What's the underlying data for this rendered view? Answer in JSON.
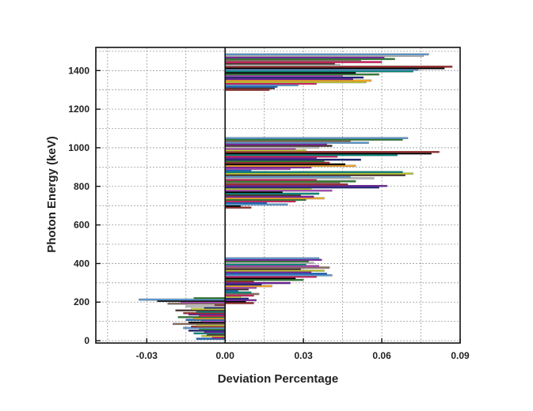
{
  "chart_data": {
    "type": "bar",
    "orientation": "horizontal",
    "title": "",
    "xlabel": "Deviation Percentage",
    "ylabel": "Photon Energy (keV)",
    "xlim": [
      -0.0495,
      0.09
    ],
    "ylim": [
      -12,
      1520
    ],
    "x_ticks": [
      -0.03,
      0.0,
      0.03,
      0.06,
      0.09
    ],
    "x_tick_labels": [
      "-0.03",
      "0.00",
      "0.03",
      "0.06",
      "0.09"
    ],
    "y_ticks": [
      0,
      200,
      400,
      600,
      800,
      1000,
      1200,
      1400
    ],
    "y_tick_labels": [
      "0",
      "200",
      "400",
      "600",
      "800",
      "1000",
      "1200",
      "1400"
    ],
    "grid": true,
    "zero_line": 0.0,
    "bar_height_kev": 9,
    "palette": [
      "#5b9bd5",
      "#9e2a2b",
      "#2e7d32",
      "#7b1fa2",
      "#c0ca33",
      "#1a237e",
      "#d81b60",
      "#00897b",
      "#8d6e63",
      "#000000",
      "#f9a825",
      "#6a1b9a",
      "#1565c0",
      "#bdbdbd",
      "#4e342e",
      "#ab47bc"
    ],
    "bars": [
      {
        "energy": 10,
        "value": -0.011,
        "color": "#1565c0"
      },
      {
        "energy": 17,
        "value": -0.005,
        "color": "#d81b60"
      },
      {
        "energy": 24,
        "value": -0.009,
        "color": "#c0ca33"
      },
      {
        "energy": 31,
        "value": -0.007,
        "color": "#4e342e"
      },
      {
        "energy": 38,
        "value": -0.012,
        "color": "#00897b"
      },
      {
        "energy": 45,
        "value": -0.008,
        "color": "#7b1fa2"
      },
      {
        "energy": 52,
        "value": -0.014,
        "color": "#1a237e"
      },
      {
        "energy": 59,
        "value": -0.01,
        "color": "#2e7d32"
      },
      {
        "energy": 66,
        "value": -0.016,
        "color": "#5b9bd5"
      },
      {
        "energy": 73,
        "value": -0.013,
        "color": "#9e2a2b"
      },
      {
        "energy": 80,
        "value": -0.011,
        "color": "#c0ca33"
      },
      {
        "energy": 87,
        "value": -0.02,
        "color": "#8d6e63"
      },
      {
        "energy": 94,
        "value": -0.014,
        "color": "#000000"
      },
      {
        "energy": 101,
        "value": -0.009,
        "color": "#ab47bc"
      },
      {
        "energy": 108,
        "value": -0.015,
        "color": "#1565c0"
      },
      {
        "energy": 115,
        "value": -0.012,
        "color": "#f9a825"
      },
      {
        "energy": 122,
        "value": -0.018,
        "color": "#2e7d32"
      },
      {
        "energy": 129,
        "value": -0.01,
        "color": "#d81b60"
      },
      {
        "energy": 136,
        "value": -0.014,
        "color": "#6a1b9a"
      },
      {
        "energy": 143,
        "value": -0.016,
        "color": "#9e2a2b"
      },
      {
        "energy": 150,
        "value": -0.011,
        "color": "#00897b"
      },
      {
        "energy": 157,
        "value": -0.019,
        "color": "#4e342e"
      },
      {
        "energy": 164,
        "value": -0.013,
        "color": "#c0ca33"
      },
      {
        "energy": 171,
        "value": -0.008,
        "color": "#1a237e"
      },
      {
        "energy": 178,
        "value": -0.015,
        "color": "#bdbdbd"
      },
      {
        "energy": 185,
        "value": -0.004,
        "color": "#9e2a2b"
      },
      {
        "energy": 192,
        "value": -0.022,
        "color": "#8d6e63"
      },
      {
        "energy": 199,
        "value": -0.017,
        "color": "#ab47bc"
      },
      {
        "energy": 206,
        "value": -0.026,
        "color": "#000000"
      },
      {
        "energy": 213,
        "value": -0.033,
        "color": "#5b9bd5"
      },
      {
        "energy": 220,
        "value": -0.012,
        "color": "#2e7d32"
      },
      {
        "energy": 195,
        "value": 0.011,
        "color": "#9e2a2b"
      },
      {
        "energy": 203,
        "value": 0.008,
        "color": "#000000"
      },
      {
        "energy": 210,
        "value": 0.012,
        "color": "#7b1fa2"
      },
      {
        "energy": 218,
        "value": 0.009,
        "color": "#1a237e"
      },
      {
        "energy": 226,
        "value": 0.006,
        "color": "#c0ca33"
      },
      {
        "energy": 234,
        "value": 0.011,
        "color": "#d81b60"
      },
      {
        "energy": 242,
        "value": 0.013,
        "color": "#8d6e63"
      },
      {
        "energy": 250,
        "value": 0.01,
        "color": "#00897b"
      },
      {
        "energy": 258,
        "value": 0.005,
        "color": "#1565c0"
      },
      {
        "energy": 266,
        "value": 0.009,
        "color": "#4e342e"
      },
      {
        "energy": 274,
        "value": 0.012,
        "color": "#ab47bc"
      },
      {
        "energy": 283,
        "value": 0.018,
        "color": "#f9a825"
      },
      {
        "energy": 291,
        "value": 0.014,
        "color": "#1a237e"
      },
      {
        "energy": 299,
        "value": 0.025,
        "color": "#6a1b9a"
      },
      {
        "energy": 307,
        "value": 0.011,
        "color": "#9e2a2b"
      },
      {
        "energy": 315,
        "value": 0.03,
        "color": "#2e7d32"
      },
      {
        "energy": 323,
        "value": 0.027,
        "color": "#000000"
      },
      {
        "energy": 331,
        "value": 0.035,
        "color": "#d81b60"
      },
      {
        "energy": 339,
        "value": 0.041,
        "color": "#5b9bd5"
      },
      {
        "energy": 347,
        "value": 0.039,
        "color": "#1565c0"
      },
      {
        "energy": 355,
        "value": 0.033,
        "color": "#7b1fa2"
      },
      {
        "energy": 363,
        "value": 0.038,
        "color": "#c0ca33"
      },
      {
        "energy": 371,
        "value": 0.029,
        "color": "#4e342e"
      },
      {
        "energy": 379,
        "value": 0.04,
        "color": "#8d6e63"
      },
      {
        "energy": 387,
        "value": 0.036,
        "color": "#ab47bc"
      },
      {
        "energy": 395,
        "value": 0.031,
        "color": "#00897b"
      },
      {
        "energy": 403,
        "value": 0.034,
        "color": "#bdbdbd"
      },
      {
        "energy": 411,
        "value": 0.032,
        "color": "#2e7d32"
      },
      {
        "energy": 419,
        "value": 0.037,
        "color": "#7b1fa2"
      },
      {
        "energy": 427,
        "value": 0.036,
        "color": "#5b9bd5"
      },
      {
        "energy": 690,
        "value": 0.01,
        "color": "#9e2a2b"
      },
      {
        "energy": 698,
        "value": 0.006,
        "color": "#000000"
      },
      {
        "energy": 706,
        "value": 0.024,
        "color": "#5b9bd5"
      },
      {
        "energy": 714,
        "value": 0.016,
        "color": "#1565c0"
      },
      {
        "energy": 722,
        "value": 0.027,
        "color": "#d81b60"
      },
      {
        "energy": 730,
        "value": 0.031,
        "color": "#2e7d32"
      },
      {
        "energy": 738,
        "value": 0.038,
        "color": "#f9a825"
      },
      {
        "energy": 746,
        "value": 0.034,
        "color": "#7b1fa2"
      },
      {
        "energy": 754,
        "value": 0.029,
        "color": "#4e342e"
      },
      {
        "energy": 762,
        "value": 0.036,
        "color": "#00897b"
      },
      {
        "energy": 770,
        "value": 0.022,
        "color": "#000000"
      },
      {
        "energy": 778,
        "value": 0.041,
        "color": "#ab47bc"
      },
      {
        "energy": 786,
        "value": 0.033,
        "color": "#c0ca33"
      },
      {
        "energy": 794,
        "value": 0.059,
        "color": "#1a237e"
      },
      {
        "energy": 802,
        "value": 0.062,
        "color": "#6a1b9a"
      },
      {
        "energy": 810,
        "value": 0.047,
        "color": "#9e2a2b"
      },
      {
        "energy": 818,
        "value": 0.044,
        "color": "#8d6e63"
      },
      {
        "energy": 826,
        "value": 0.05,
        "color": "#2e7d32"
      },
      {
        "energy": 834,
        "value": 0.035,
        "color": "#d81b60"
      },
      {
        "energy": 842,
        "value": 0.057,
        "color": "#bdbdbd"
      },
      {
        "energy": 850,
        "value": 0.048,
        "color": "#5b9bd5"
      },
      {
        "energy": 858,
        "value": 0.069,
        "color": "#4e342e"
      },
      {
        "energy": 866,
        "value": 0.072,
        "color": "#c0ca33"
      },
      {
        "energy": 874,
        "value": 0.068,
        "color": "#00897b"
      },
      {
        "energy": 882,
        "value": 0.01,
        "color": "#1565c0"
      },
      {
        "energy": 890,
        "value": 0.025,
        "color": "#ab47bc"
      },
      {
        "energy": 898,
        "value": 0.033,
        "color": "#7b1fa2"
      },
      {
        "energy": 906,
        "value": 0.05,
        "color": "#f9a825"
      },
      {
        "energy": 914,
        "value": 0.046,
        "color": "#000000"
      },
      {
        "energy": 922,
        "value": 0.04,
        "color": "#9e2a2b"
      },
      {
        "energy": 930,
        "value": 0.038,
        "color": "#2e7d32"
      },
      {
        "energy": 938,
        "value": 0.052,
        "color": "#1a237e"
      },
      {
        "energy": 946,
        "value": 0.035,
        "color": "#6a1b9a"
      },
      {
        "energy": 954,
        "value": 0.043,
        "color": "#d81b60"
      },
      {
        "energy": 962,
        "value": 0.066,
        "color": "#00897b"
      },
      {
        "energy": 970,
        "value": 0.079,
        "color": "#000000"
      },
      {
        "energy": 978,
        "value": 0.082,
        "color": "#9e2a2b"
      },
      {
        "energy": 986,
        "value": 0.031,
        "color": "#c0ca33"
      },
      {
        "energy": 994,
        "value": 0.027,
        "color": "#ab47bc"
      },
      {
        "energy": 1002,
        "value": 0.036,
        "color": "#bdbdbd"
      },
      {
        "energy": 1010,
        "value": 0.041,
        "color": "#4e342e"
      },
      {
        "energy": 1018,
        "value": 0.039,
        "color": "#7b1fa2"
      },
      {
        "energy": 1026,
        "value": 0.055,
        "color": "#5b9bd5"
      },
      {
        "energy": 1034,
        "value": 0.048,
        "color": "#8d6e63"
      },
      {
        "energy": 1042,
        "value": 0.068,
        "color": "#2e7d32"
      },
      {
        "energy": 1050,
        "value": 0.07,
        "color": "#5b9bd5"
      },
      {
        "energy": 1300,
        "value": 0.017,
        "color": "#9e2a2b"
      },
      {
        "energy": 1308,
        "value": 0.019,
        "color": "#4e342e"
      },
      {
        "energy": 1316,
        "value": 0.02,
        "color": "#1565c0"
      },
      {
        "energy": 1324,
        "value": 0.028,
        "color": "#5b9bd5"
      },
      {
        "energy": 1332,
        "value": 0.035,
        "color": "#d81b60"
      },
      {
        "energy": 1340,
        "value": 0.054,
        "color": "#c0ca33"
      },
      {
        "energy": 1348,
        "value": 0.056,
        "color": "#f9a825"
      },
      {
        "energy": 1356,
        "value": 0.049,
        "color": "#6a1b9a"
      },
      {
        "energy": 1364,
        "value": 0.053,
        "color": "#1a237e"
      },
      {
        "energy": 1372,
        "value": 0.045,
        "color": "#ab47bc"
      },
      {
        "energy": 1380,
        "value": 0.059,
        "color": "#2e7d32"
      },
      {
        "energy": 1388,
        "value": 0.05,
        "color": "#000000"
      },
      {
        "energy": 1396,
        "value": 0.072,
        "color": "#00897b"
      },
      {
        "energy": 1404,
        "value": 0.074,
        "color": "#5b9bd5"
      },
      {
        "energy": 1412,
        "value": 0.084,
        "color": "#000000"
      },
      {
        "energy": 1420,
        "value": 0.087,
        "color": "#9e2a2b"
      },
      {
        "energy": 1428,
        "value": 0.044,
        "color": "#bdbdbd"
      },
      {
        "energy": 1436,
        "value": 0.042,
        "color": "#4e342e"
      },
      {
        "energy": 1444,
        "value": 0.06,
        "color": "#d81b60"
      },
      {
        "energy": 1452,
        "value": 0.052,
        "color": "#8d6e63"
      },
      {
        "energy": 1460,
        "value": 0.065,
        "color": "#2e7d32"
      },
      {
        "energy": 1468,
        "value": 0.061,
        "color": "#7b1fa2"
      },
      {
        "energy": 1476,
        "value": 0.076,
        "color": "#bdbdbd"
      },
      {
        "energy": 1484,
        "value": 0.078,
        "color": "#5b9bd5"
      }
    ]
  }
}
